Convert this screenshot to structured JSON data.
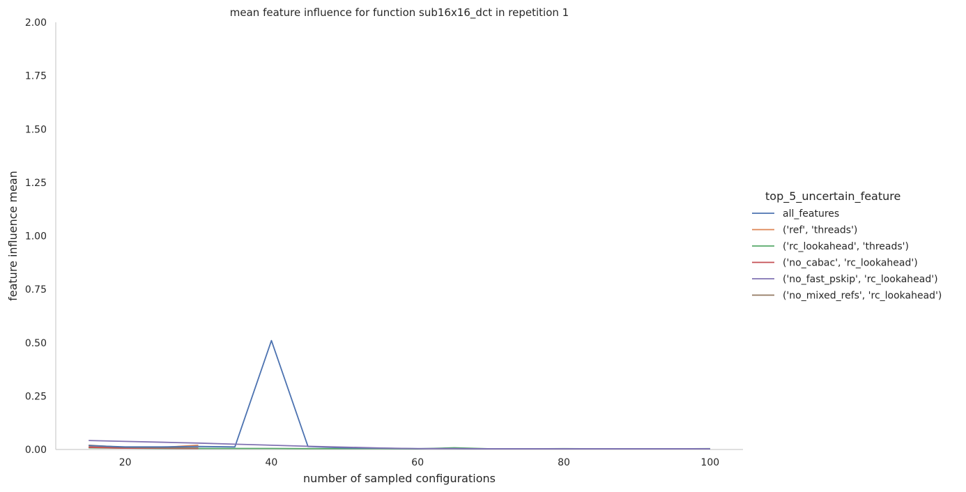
{
  "chart_data": {
    "type": "line",
    "title": "mean feature influence for function sub16x16_dct in repetition 1",
    "xlabel": "number of sampled configurations",
    "ylabel": "feature influence mean",
    "xlim": [
      10.5,
      104.5
    ],
    "ylim": [
      0,
      2.0
    ],
    "xticks": [
      20,
      40,
      60,
      80,
      100
    ],
    "yticks": [
      0.0,
      0.25,
      0.5,
      0.75,
      1.0,
      1.25,
      1.5,
      1.75,
      2.0
    ],
    "ytick_labels": [
      "0.00",
      "0.25",
      "0.50",
      "0.75",
      "1.00",
      "1.25",
      "1.50",
      "1.75",
      "2.00"
    ],
    "grid": false,
    "legend": {
      "title": "top_5_uncertain_feature",
      "placement": "right"
    },
    "series": [
      {
        "name": "all_features",
        "color": "#4c72b0",
        "x": [
          15,
          20,
          25,
          30,
          35,
          40,
          45,
          50,
          55,
          60,
          65,
          70,
          75,
          80,
          85,
          90,
          95,
          100
        ],
        "y": [
          0.018,
          0.012,
          0.012,
          0.014,
          0.012,
          0.51,
          0.014,
          0.008,
          0.006,
          0.004,
          0.004,
          0.003,
          0.003,
          0.003,
          0.003,
          0.003,
          0.003,
          0.003
        ]
      },
      {
        "name": "('ref', 'threads')",
        "color": "#dd8452",
        "x": [
          15,
          20,
          25,
          30
        ],
        "y": [
          0.012,
          0.008,
          0.01,
          0.02
        ]
      },
      {
        "name": "('rc_lookahead', 'threads')",
        "color": "#55a868",
        "x": [
          15,
          20,
          25,
          30,
          35,
          40,
          45,
          50,
          55,
          60,
          65,
          70,
          75,
          80,
          85,
          90,
          95,
          100
        ],
        "y": [
          0.008,
          0.006,
          0.005,
          0.005,
          0.005,
          0.005,
          0.004,
          0.004,
          0.004,
          0.003,
          0.008,
          0.003,
          0.003,
          0.004,
          0.003,
          0.003,
          0.003,
          0.004
        ]
      },
      {
        "name": "('no_cabac', 'rc_lookahead')",
        "color": "#c44e52",
        "x": [
          15,
          20,
          25,
          30
        ],
        "y": [
          0.01,
          0.006,
          0.006,
          0.005
        ]
      },
      {
        "name": "('no_fast_pskip', 'rc_lookahead')",
        "color": "#8172b3",
        "x": [
          15,
          20,
          25,
          30,
          35,
          40,
          45,
          50,
          55,
          60,
          65,
          70,
          75,
          80,
          85,
          90,
          95,
          100
        ],
        "y": [
          0.042,
          0.038,
          0.034,
          0.03,
          0.025,
          0.02,
          0.015,
          0.011,
          0.007,
          0.004,
          0.004,
          0.003,
          0.003,
          0.003,
          0.003,
          0.003,
          0.003,
          0.003
        ]
      },
      {
        "name": "('no_mixed_refs', 'rc_lookahead')",
        "color": "#937860",
        "x": [
          15,
          20,
          25,
          30
        ],
        "y": [
          0.02,
          0.01,
          0.008,
          0.007
        ]
      }
    ]
  }
}
